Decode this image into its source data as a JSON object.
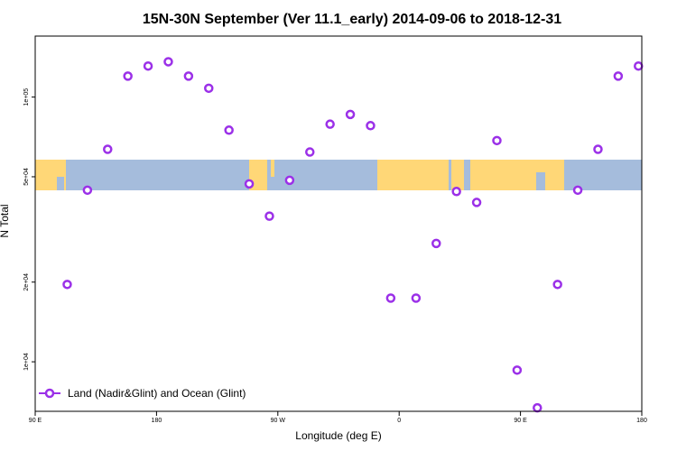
{
  "chart_data": {
    "type": "scatter",
    "title": "15N-30N September (Ver 11.1_early)   2014-09-06 to 2018-12-31",
    "xlabel": "Longitude (deg E)",
    "ylabel": "N Total",
    "x_scale": "linear",
    "y_scale": "log",
    "xlim": [
      90,
      450
    ],
    "ylim": [
      6500,
      170000
    ],
    "x_ticks": [
      {
        "value": 90,
        "label": "90 E"
      },
      {
        "value": 162,
        "label": "180"
      },
      {
        "value": 234,
        "label": "90 W"
      },
      {
        "value": 306,
        "label": "0"
      },
      {
        "value": 378,
        "label": "90 E"
      },
      {
        "value": 450,
        "label": "180"
      }
    ],
    "y_ticks": [
      {
        "value": 10000,
        "label": "1e+04"
      },
      {
        "value": 20000,
        "label": "2e+04"
      },
      {
        "value": 50000,
        "label": "5e+04"
      },
      {
        "value": 100000,
        "label": "1e+05"
      }
    ],
    "legend_position": "bottom-left",
    "series": [
      {
        "name": "Land (Nadir&Glint) and Ocean (Glint)",
        "color": "#9b30e8",
        "marker": "open-circle",
        "points": [
          {
            "x": 109,
            "y": 19600
          },
          {
            "x": 121,
            "y": 44500
          },
          {
            "x": 133,
            "y": 63500
          },
          {
            "x": 145,
            "y": 120000
          },
          {
            "x": 157,
            "y": 131000
          },
          {
            "x": 169,
            "y": 136000
          },
          {
            "x": 181,
            "y": 120000
          },
          {
            "x": 193,
            "y": 108000
          },
          {
            "x": 205,
            "y": 75000
          },
          {
            "x": 217,
            "y": 47000
          },
          {
            "x": 229,
            "y": 35500
          },
          {
            "x": 241,
            "y": 48500
          },
          {
            "x": 253,
            "y": 62000
          },
          {
            "x": 265,
            "y": 79000
          },
          {
            "x": 277,
            "y": 86000
          },
          {
            "x": 289,
            "y": 78000
          },
          {
            "x": 301,
            "y": 17400
          },
          {
            "x": 316,
            "y": 17400
          },
          {
            "x": 328,
            "y": 28000
          },
          {
            "x": 340,
            "y": 44000
          },
          {
            "x": 352,
            "y": 40000
          },
          {
            "x": 364,
            "y": 68500
          },
          {
            "x": 376,
            "y": 9300
          },
          {
            "x": 388,
            "y": 6700
          },
          {
            "x": 400,
            "y": 19600
          },
          {
            "x": 412,
            "y": 44500
          },
          {
            "x": 424,
            "y": 63500
          },
          {
            "x": 436,
            "y": 120000
          },
          {
            "x": 448,
            "y": 131000
          }
        ]
      }
    ],
    "background_map": {
      "lat_range": "15N-30N",
      "ocean_color": "#a5bcdc",
      "land_color": "#ffd777"
    }
  }
}
